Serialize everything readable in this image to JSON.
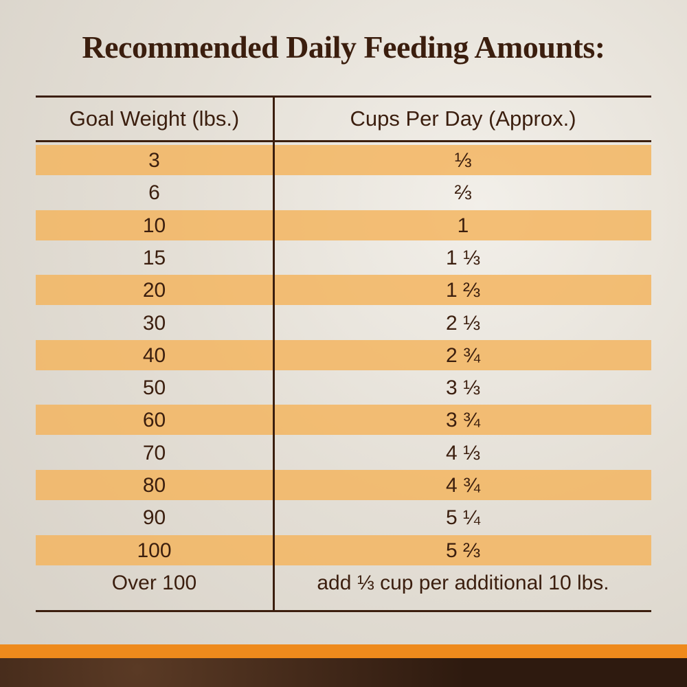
{
  "title": "Recommended Daily Feeding Amounts:",
  "table": {
    "header": [
      "Goal Weight (lbs.)",
      "Cups Per Day (Approx.)"
    ],
    "rows": [
      [
        "3",
        "⅓"
      ],
      [
        "6",
        "⅔"
      ],
      [
        "10",
        "1"
      ],
      [
        "15",
        "1 ⅓"
      ],
      [
        "20",
        "1 ⅔"
      ],
      [
        "30",
        "2 ⅓"
      ],
      [
        "40",
        "2 ¾"
      ],
      [
        "50",
        "3 ⅓"
      ],
      [
        "60",
        "3 ¾"
      ],
      [
        "70",
        "4 ⅓"
      ],
      [
        "80",
        "4 ¾"
      ],
      [
        "90",
        "5 ¼"
      ],
      [
        "100",
        "5 ⅔"
      ],
      [
        "Over 100",
        "add ⅓ cup per additional 10 lbs."
      ]
    ]
  }
}
